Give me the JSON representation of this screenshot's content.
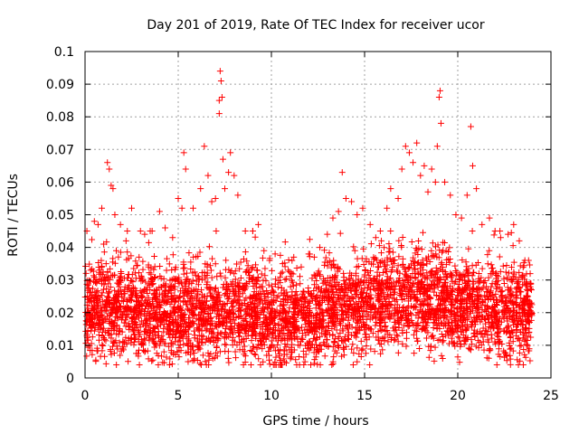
{
  "chart_data": {
    "type": "scatter",
    "title": "Day 201 of 2019, Rate Of TEC Index for receiver ucor",
    "xlabel": "GPS time / hours",
    "ylabel": "ROTI / TECUs",
    "xlim": [
      0,
      25
    ],
    "ylim": [
      0,
      0.1
    ],
    "x_ticks": [
      "0",
      "5",
      "10",
      "15",
      "20",
      "25"
    ],
    "y_ticks": [
      "0",
      "0.01",
      "0.02",
      "0.03",
      "0.04",
      "0.05",
      "0.06",
      "0.07",
      "0.08",
      "0.09",
      "0.1"
    ],
    "grid": true,
    "marker": "+",
    "colors": {
      "series": "#ff0000",
      "grid": "#a0a0a0",
      "frame": "#000000"
    },
    "series": [
      {
        "name": "",
        "points": [
          [
            0.1,
            0.045
          ],
          [
            0.3,
            0.033
          ],
          [
            0.5,
            0.048
          ],
          [
            0.7,
            0.047
          ],
          [
            0.9,
            0.052
          ],
          [
            1.0,
            0.041
          ],
          [
            1.2,
            0.066
          ],
          [
            1.3,
            0.064
          ],
          [
            1.4,
            0.059
          ],
          [
            1.5,
            0.058
          ],
          [
            1.6,
            0.05
          ],
          [
            1.9,
            0.047
          ],
          [
            2.2,
            0.042
          ],
          [
            2.5,
            0.052
          ],
          [
            2.9,
            0.037
          ],
          [
            3.2,
            0.044
          ],
          [
            3.6,
            0.045
          ],
          [
            4.0,
            0.051
          ],
          [
            4.3,
            0.046
          ],
          [
            4.7,
            0.043
          ],
          [
            5.0,
            0.055
          ],
          [
            5.2,
            0.052
          ],
          [
            5.3,
            0.069
          ],
          [
            5.4,
            0.064
          ],
          [
            5.8,
            0.052
          ],
          [
            6.2,
            0.058
          ],
          [
            6.4,
            0.071
          ],
          [
            6.6,
            0.062
          ],
          [
            6.8,
            0.054
          ],
          [
            7.0,
            0.055
          ],
          [
            7.2,
            0.085
          ],
          [
            7.25,
            0.094
          ],
          [
            7.3,
            0.091
          ],
          [
            7.35,
            0.086
          ],
          [
            7.2,
            0.081
          ],
          [
            7.4,
            0.067
          ],
          [
            7.5,
            0.058
          ],
          [
            7.7,
            0.063
          ],
          [
            7.8,
            0.069
          ],
          [
            8.0,
            0.062
          ],
          [
            8.2,
            0.056
          ],
          [
            8.6,
            0.045
          ],
          [
            9.0,
            0.045
          ],
          [
            9.3,
            0.047
          ],
          [
            9.6,
            0.039
          ],
          [
            9.9,
            0.036
          ],
          [
            10.2,
            0.038
          ],
          [
            10.6,
            0.035
          ],
          [
            10.9,
            0.033
          ],
          [
            11.2,
            0.037
          ],
          [
            11.6,
            0.034
          ],
          [
            12.0,
            0.038
          ],
          [
            12.3,
            0.037
          ],
          [
            12.6,
            0.04
          ],
          [
            13.0,
            0.044
          ],
          [
            13.3,
            0.049
          ],
          [
            13.6,
            0.051
          ],
          [
            13.8,
            0.063
          ],
          [
            14.0,
            0.055
          ],
          [
            14.3,
            0.054
          ],
          [
            14.6,
            0.05
          ],
          [
            14.9,
            0.052
          ],
          [
            15.3,
            0.047
          ],
          [
            15.6,
            0.043
          ],
          [
            15.9,
            0.042
          ],
          [
            16.2,
            0.052
          ],
          [
            16.4,
            0.058
          ],
          [
            16.8,
            0.055
          ],
          [
            17.0,
            0.064
          ],
          [
            17.2,
            0.071
          ],
          [
            17.4,
            0.069
          ],
          [
            17.6,
            0.066
          ],
          [
            17.8,
            0.072
          ],
          [
            18.0,
            0.062
          ],
          [
            18.2,
            0.065
          ],
          [
            18.4,
            0.057
          ],
          [
            18.6,
            0.064
          ],
          [
            18.8,
            0.06
          ],
          [
            18.9,
            0.071
          ],
          [
            19.0,
            0.086
          ],
          [
            19.05,
            0.088
          ],
          [
            19.1,
            0.078
          ],
          [
            19.3,
            0.06
          ],
          [
            19.6,
            0.056
          ],
          [
            19.9,
            0.05
          ],
          [
            20.2,
            0.049
          ],
          [
            20.5,
            0.056
          ],
          [
            20.7,
            0.077
          ],
          [
            20.8,
            0.065
          ],
          [
            21.0,
            0.058
          ],
          [
            21.3,
            0.047
          ],
          [
            21.7,
            0.049
          ],
          [
            22.0,
            0.045
          ],
          [
            22.3,
            0.043
          ],
          [
            22.7,
            0.044
          ],
          [
            23.0,
            0.047
          ],
          [
            23.3,
            0.042
          ],
          [
            23.6,
            0.036
          ],
          [
            23.8,
            0.036
          ],
          [
            23.9,
            0.029
          ]
        ]
      }
    ],
    "noise_envelope": {
      "x_range": [
        0,
        24
      ],
      "baseline_profile_hours": [
        0,
        2,
        4,
        6,
        8,
        10,
        12,
        14,
        16,
        18,
        20,
        22,
        24
      ],
      "baseline_profile_roti": [
        0.02,
        0.021,
        0.019,
        0.02,
        0.021,
        0.017,
        0.018,
        0.021,
        0.023,
        0.024,
        0.022,
        0.02,
        0.02
      ],
      "min_roti": 0.004,
      "typical_max_roti": 0.04
    }
  }
}
